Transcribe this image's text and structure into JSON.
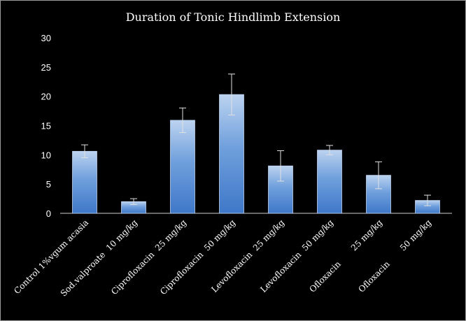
{
  "colors": {
    "background": "#000000",
    "bar_top": "#bcd3f0",
    "bar_mid": "#6f9fdc",
    "bar_bottom": "#3f78c9",
    "text": "#ffffff",
    "axis": "#cfcfcf",
    "error_bar": "#e0e0e0"
  },
  "chart_data": {
    "type": "bar",
    "title": "Duration of Tonic Hindlimb Extension",
    "xlabel": "",
    "ylabel": "",
    "ylim": [
      0,
      30
    ],
    "yticks": [
      0,
      5,
      10,
      15,
      20,
      25,
      30
    ],
    "grid": false,
    "legend": "none",
    "categories": [
      "Control 1%vgum acasia",
      "Sod.valproate  10 mg/kg",
      "Ciprofloxacin  25 mg/kg",
      "Ciprofloxacin  50 mg/kg",
      "Levofloxacin  25 mg/kg",
      "Levofloxacin  50 mg/kg",
      "Ofloxacin       25 mg/kg",
      "Ofloxacin       50 mg/kg"
    ],
    "values": [
      10.6,
      2.0,
      15.9,
      20.3,
      8.1,
      10.8,
      6.5,
      2.2
    ],
    "error": [
      1.1,
      0.5,
      2.1,
      3.5,
      2.6,
      0.8,
      2.3,
      0.9
    ]
  }
}
